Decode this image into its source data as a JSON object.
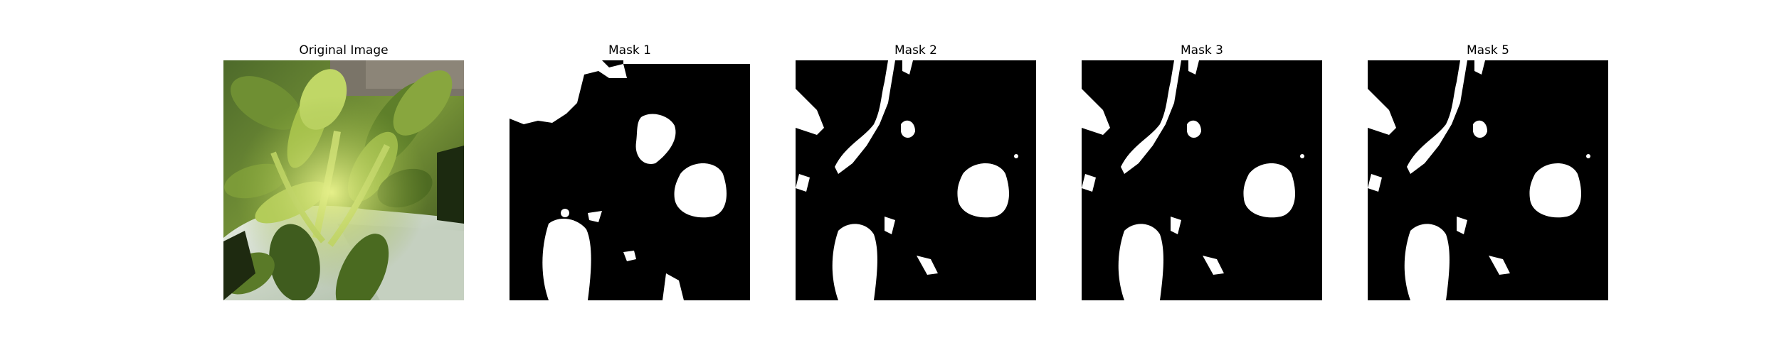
{
  "panels": [
    {
      "title": "Original Image",
      "kind": "photo"
    },
    {
      "title": "Mask 1",
      "kind": "mask"
    },
    {
      "title": "Mask 2",
      "kind": "mask"
    },
    {
      "title": "Mask 3",
      "kind": "mask"
    },
    {
      "title": "Mask 5",
      "kind": "mask"
    }
  ],
  "colors": {
    "background": "#ffffff",
    "mask_background": "#000000",
    "mask_foreground": "#ffffff",
    "leaf_light": "#c9dc6a",
    "leaf_mid": "#8fae3c",
    "leaf_dark": "#3d5a1e",
    "pot_white": "#d9e2d4"
  }
}
